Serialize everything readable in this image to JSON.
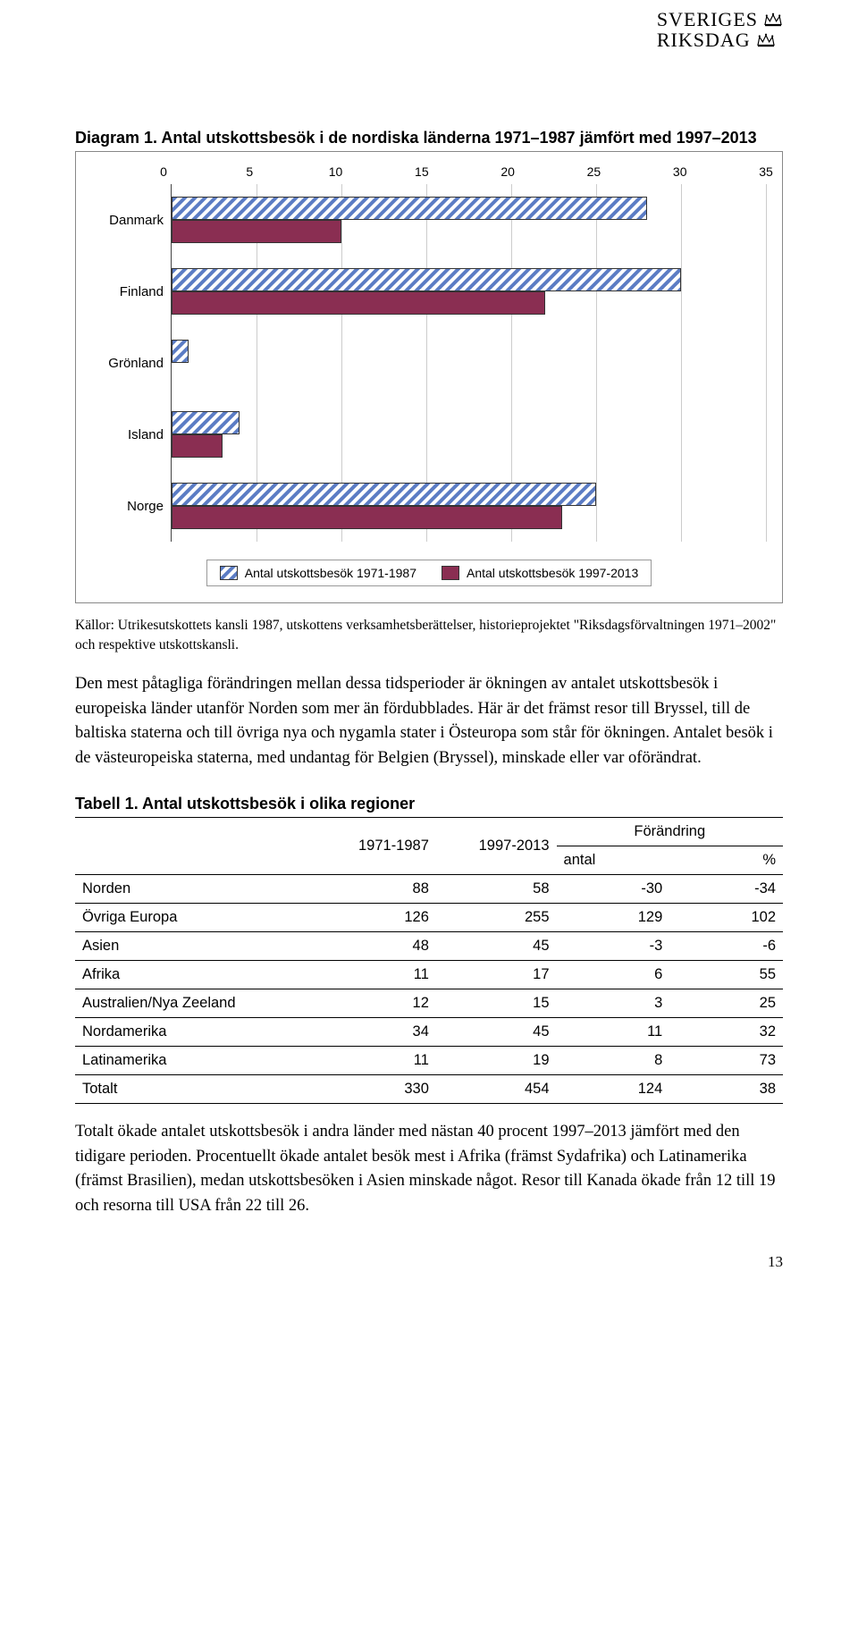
{
  "logo": {
    "line1": "SVERIGES",
    "line2": "RIKSDAG"
  },
  "diagram": {
    "lead": "Diagram 1.",
    "title_rest": " Antal utskottsbesök i de nordiska länderna 1971–1987 jämfört med 1997–2013",
    "type": "bar-horizontal",
    "x": {
      "min": 0,
      "max": 35,
      "step": 5,
      "ticks": [
        0,
        5,
        10,
        15,
        20,
        25,
        30,
        35
      ]
    },
    "categories": [
      "Danmark",
      "Finland",
      "Grönland",
      "Island",
      "Norge"
    ],
    "series": [
      {
        "name": "Antal utskottsbesök 1971-1987",
        "pattern": "hatch-blue",
        "values": [
          28,
          30,
          1,
          4,
          25
        ]
      },
      {
        "name": "Antal utskottsbesök 1997-2013",
        "pattern": "solid-maroon",
        "values": [
          10,
          22,
          0,
          3,
          23
        ]
      }
    ],
    "colors": {
      "hatch_stripe": "#5b7cc4",
      "hatch_bg": "#ffffff",
      "solid_fill": "#8a2e52",
      "border": "#333333",
      "grid": "#cccccc",
      "text": "#000000",
      "frame_bg": "#ffffff"
    },
    "font": {
      "axis_size": 14,
      "legend_size": 14,
      "family": "Arial"
    }
  },
  "source_line": "Källor: Utrikesutskottets kansli 1987, utskottens verksamhetsberättelser, historieprojektet \"Riksdagsförvaltningen 1971–2002\" och respektive utskottskansli.",
  "para1": "Den mest påtagliga förändringen mellan dessa tidsperioder är ökningen av antalet utskottsbesök i europeiska länder utanför Norden som mer än fördubblades. Här är det främst resor till Bryssel, till de baltiska staterna och till övriga nya och nygamla stater i Östeuropa som står för ökningen. Antalet besök i de västeuropeiska staterna, med undantag för Belgien (Bryssel), minskade eller var oförändrat.",
  "table": {
    "lead": "Tabell 1.",
    "title_rest": " Antal utskottsbesök i olika regioner",
    "columns": [
      "",
      "1971-1987",
      "1997-2013",
      "Förändring"
    ],
    "sub_columns": [
      "",
      "",
      "",
      "antal",
      "%"
    ],
    "rows": [
      [
        "Norden",
        "88",
        "58",
        "-30",
        "-34"
      ],
      [
        "Övriga Europa",
        "126",
        "255",
        "129",
        "102"
      ],
      [
        "Asien",
        "48",
        "45",
        "-3",
        "-6"
      ],
      [
        "Afrika",
        "11",
        "17",
        "6",
        "55"
      ],
      [
        "Australien/Nya Zeeland",
        "12",
        "15",
        "3",
        "25"
      ],
      [
        "Nordamerika",
        "34",
        "45",
        "11",
        "32"
      ],
      [
        "Latinamerika",
        "11",
        "19",
        "8",
        "73"
      ],
      [
        "Totalt",
        "330",
        "454",
        "124",
        "38"
      ]
    ],
    "col_widths": [
      "34%",
      "17%",
      "17%",
      "16%",
      "16%"
    ]
  },
  "para2": "Totalt ökade antalet utskottsbesök i andra länder med nästan 40 procent 1997–2013 jämfört med den tidigare perioden. Procentuellt ökade antalet besök mest i Afrika (främst Sydafrika) och Latinamerika (främst Brasilien), medan utskottsbesöken i Asien minskade något. Resor till Kanada ökade från 12 till 19 och resorna till USA från 22 till 26.",
  "page_number": "13"
}
